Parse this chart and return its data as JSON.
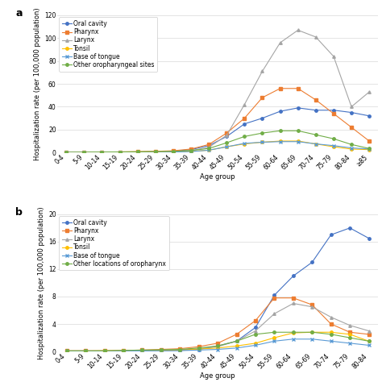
{
  "age_groups": [
    "0-4",
    "5-9",
    "10-14",
    "15-19",
    "20-24",
    "25-29",
    "30-34",
    "35-39",
    "40-44",
    "45-49",
    "50-54",
    "55-59",
    "60-64",
    "65-69",
    "70-74",
    "75-79",
    "80-84",
    "≥85"
  ],
  "panel_a": {
    "ylabel": "Hospitalization rate (per 100,000 population)",
    "xlabel": "Age group",
    "ylim": [
      0,
      120
    ],
    "yticks": [
      0,
      20,
      40,
      60,
      80,
      100,
      120
    ],
    "series": {
      "Oral cavity": [
        0.2,
        0.3,
        0.3,
        0.4,
        0.5,
        0.8,
        1.2,
        2.5,
        6.0,
        14.0,
        25.0,
        30.0,
        36.0,
        39.0,
        37.0,
        37.0,
        35.0,
        32.0
      ],
      "Pharynx": [
        0.2,
        0.3,
        0.3,
        0.5,
        0.7,
        1.0,
        1.5,
        3.0,
        7.0,
        17.0,
        30.0,
        48.0,
        56.0,
        56.0,
        46.0,
        34.0,
        22.0,
        10.0
      ],
      "Larynx": [
        0.1,
        0.1,
        0.1,
        0.1,
        0.2,
        0.3,
        0.5,
        1.5,
        4.5,
        15.0,
        42.0,
        71.0,
        96.0,
        107.0,
        101.0,
        84.0,
        40.0,
        53.0
      ],
      "Tonsil": [
        0.1,
        0.2,
        0.3,
        0.5,
        0.6,
        0.7,
        0.8,
        1.0,
        2.0,
        5.0,
        7.5,
        9.0,
        10.0,
        10.0,
        7.5,
        5.0,
        3.0,
        2.5
      ],
      "Base of tongue": [
        0.1,
        0.1,
        0.1,
        0.2,
        0.2,
        0.3,
        0.4,
        0.8,
        2.0,
        5.0,
        8.0,
        9.0,
        9.5,
        9.5,
        7.5,
        6.0,
        4.0,
        3.0
      ],
      "Other oropharyngeal sites": [
        0.2,
        0.3,
        0.4,
        0.5,
        0.6,
        0.8,
        1.0,
        1.8,
        3.5,
        8.5,
        14.0,
        17.0,
        19.0,
        19.0,
        15.5,
        12.0,
        7.0,
        3.5
      ]
    }
  },
  "panel_b": {
    "ylabel": "Hospitalization rate (per 100,000 population)",
    "xlabel": "Age group",
    "ylim": [
      0,
      20
    ],
    "yticks": [
      0,
      4,
      8,
      12,
      16,
      20
    ],
    "series": {
      "Oral cavity": [
        0.05,
        0.05,
        0.05,
        0.05,
        0.08,
        0.1,
        0.15,
        0.3,
        0.8,
        1.5,
        3.5,
        8.2,
        11.0,
        13.0,
        17.0,
        18.0,
        16.5
      ],
      "Pharynx": [
        0.1,
        0.1,
        0.1,
        0.15,
        0.2,
        0.3,
        0.4,
        0.7,
        1.2,
        2.5,
        4.5,
        7.8,
        7.8,
        6.8,
        4.0,
        2.8,
        2.5
      ],
      "Larynx": [
        0.05,
        0.05,
        0.05,
        0.08,
        0.1,
        0.15,
        0.2,
        0.4,
        0.7,
        1.5,
        3.0,
        5.5,
        7.0,
        6.5,
        5.0,
        3.8,
        3.0
      ],
      "Tonsil": [
        0.05,
        0.05,
        0.1,
        0.1,
        0.1,
        0.15,
        0.2,
        0.35,
        0.5,
        0.8,
        1.2,
        2.0,
        2.7,
        2.8,
        2.8,
        2.5,
        1.5
      ],
      "Base of tongue": [
        0.05,
        0.05,
        0.05,
        0.05,
        0.07,
        0.1,
        0.12,
        0.2,
        0.3,
        0.5,
        0.9,
        1.5,
        1.8,
        1.8,
        1.5,
        1.2,
        0.9
      ],
      "Other locations of oropharynx": [
        0.1,
        0.1,
        0.1,
        0.15,
        0.2,
        0.25,
        0.3,
        0.5,
        0.8,
        1.5,
        2.5,
        2.8,
        2.8,
        2.8,
        2.5,
        2.0,
        1.5
      ]
    }
  },
  "panel_b_age_groups": [
    "0-4",
    "5-9",
    "10-14",
    "15-19",
    "20-24",
    "25-29",
    "30-34",
    "35-39",
    "40-44",
    "45-49",
    "50-54",
    "55-59",
    "60-64",
    "65-69",
    "70-74",
    "75-79",
    "80-84"
  ],
  "series_styles": {
    "Oral cavity": {
      "color": "#4472C4",
      "marker": "o",
      "linestyle": "-"
    },
    "Pharynx": {
      "color": "#ED7D31",
      "marker": "s",
      "linestyle": "-"
    },
    "Larynx": {
      "color": "#A5A5A5",
      "marker": "^",
      "linestyle": "-"
    },
    "Tonsil": {
      "color": "#FFC000",
      "marker": "o",
      "linestyle": "-"
    },
    "Base of tongue": {
      "color": "#5B9BD5",
      "marker": "x",
      "linestyle": "-"
    },
    "Other oropharyngeal sites": {
      "color": "#70AD47",
      "marker": "o",
      "linestyle": "-"
    },
    "Other locations of oropharynx": {
      "color": "#70AD47",
      "marker": "o",
      "linestyle": "-"
    }
  },
  "background_color": "#FFFFFF",
  "grid_color": "#D9D9D9",
  "label_fontsize": 6,
  "tick_fontsize": 5.5,
  "legend_fontsize": 5.5,
  "panel_label_fontsize": 9
}
